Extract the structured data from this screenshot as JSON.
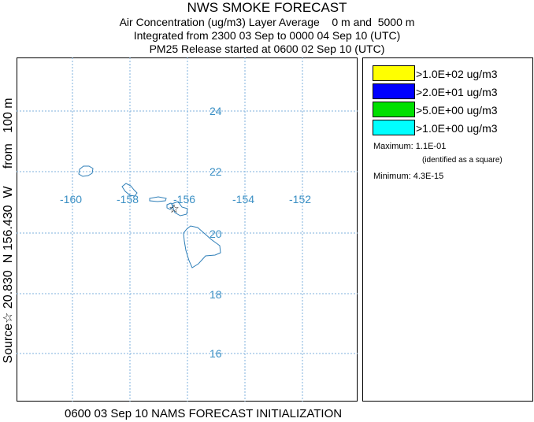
{
  "header": {
    "title": "NWS SMOKE FORECAST",
    "line2": "Air Concentration (ug/m3) Layer Average    0 m and  5000 m",
    "line3": "Integrated from 2300 03 Sep to 0000 04 Sep 10 (UTC)",
    "line4": "PM25 Release started at 0600 02 Sep 10 (UTC)"
  },
  "map": {
    "lon_labels": [
      "-160",
      "-158",
      "-156",
      "-154",
      "-152"
    ],
    "lat_labels": [
      "24",
      "22",
      "20",
      "18",
      "16"
    ],
    "grid_color": "#7fb2dd",
    "label_color": "#3a8fc4",
    "coast_color": "#2f7fb8",
    "source_marker_icon": "star-icon"
  },
  "legend": {
    "items": [
      {
        "color": "#ffff00",
        "label": ">1.0E+02 ug/m3"
      },
      {
        "color": "#0000ff",
        "label": ">2.0E+01 ug/m3"
      },
      {
        "color": "#00e000",
        "label": ">5.0E+00 ug/m3"
      },
      {
        "color": "#00ffff",
        "label": ">1.0E+00 ug/m3"
      }
    ],
    "maximum": "Maximum: 1.1E-01",
    "max_note": "(identified as a square)",
    "minimum": "Minimum: 4.3E-15"
  },
  "side_label": "Source☆ 20.830  N 156.430  W     from   100 m",
  "bottom_label": "0600 03 Sep 10 NAMS FORECAST INITIALIZATION"
}
